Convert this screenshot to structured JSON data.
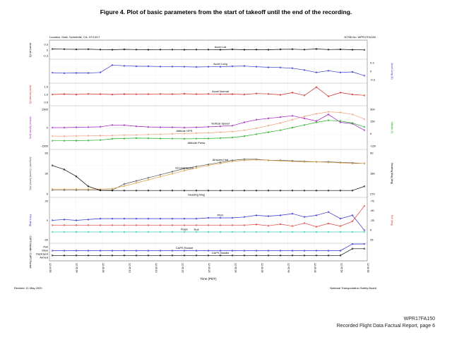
{
  "title": "Figure 4. Plot of basic parameters from the start of takeoff until the end of the recording.",
  "header": {
    "location": "Location, Date: Schellville, CA, 07/13/17",
    "id": "NTSB No. WPR17FA150"
  },
  "revised": "Revised: 11 May 2020",
  "agency": "National Transportation Safety Board",
  "footer": {
    "line1": "WPR17FA150",
    "line2": "Recorded Flight Data Factual Report, page 6"
  },
  "chart_data": {
    "type": "line",
    "xlabel": "Time (PDT)",
    "x_ticks": [
      "12:44:55",
      "12:45:00",
      "12:45:05",
      "12:45:10",
      "12:45:15",
      "12:45:20",
      "12:45:25",
      "12:45:30",
      "12:45:35",
      "12:45:40",
      "12:45:45",
      "12:45:50",
      "12:45:55"
    ],
    "grid": true,
    "panels": [
      {
        "id": "lat",
        "left_axis": "Accel Lat (G)",
        "left_ticks": [
          "0.3",
          "0",
          "-0.3"
        ],
        "right_axis": "",
        "right_ticks": [],
        "series": [
          {
            "name": "Accel Lat",
            "color": "#000000",
            "values": [
              0.06,
              0.05,
              0.04,
              0.05,
              0.03,
              0.02,
              0.04,
              0.03,
              0.02,
              0.03,
              0.03,
              0.02,
              0.03,
              0.03,
              0.02,
              0.04,
              0.02,
              0.03,
              0.02,
              0.04,
              0.05,
              0.03,
              0.06,
              0.03,
              0.04,
              0.02,
              0.01
            ]
          }
        ]
      },
      {
        "id": "long",
        "left_axis": "",
        "left_ticks": [],
        "right_axis": "Accel Long (G)",
        "right_ticks": [
          "0.3",
          "0",
          "-0.3"
        ],
        "series": [
          {
            "name": "Accel Long",
            "color": "#3030cc",
            "values": [
              -0.06,
              -0.08,
              -0.07,
              -0.07,
              -0.05,
              0.25,
              0.22,
              0.2,
              0.2,
              0.19,
              0.19,
              0.18,
              0.17,
              0.18,
              0.18,
              0.2,
              0.21,
              0.18,
              0.16,
              0.15,
              0.12,
              0.05,
              -0.05,
              0.02,
              -0.05,
              -0.03,
              -0.18
            ]
          }
        ]
      },
      {
        "id": "normal",
        "left_axis": "Accel Normal (G)",
        "left_ticks": [
          "1.5",
          "1.0",
          "0.5"
        ],
        "right_axis": "",
        "right_ticks": [],
        "series": [
          {
            "name": "Accel Normal",
            "color": "#cc2a2a",
            "values": [
              1.0,
              1.02,
              1.0,
              1.03,
              1.02,
              1.0,
              1.02,
              1.01,
              1.02,
              1.03,
              1.02,
              1.04,
              1.02,
              1.03,
              1.01,
              1.02,
              1.0,
              1.05,
              1.03,
              0.98,
              1.1,
              0.95,
              1.4,
              0.9,
              1.1,
              1.0,
              0.95
            ]
          }
        ]
      },
      {
        "id": "vs",
        "left_axis": "Vertical Speed (fpm)",
        "left_ticks": [
          "1500",
          "0",
          "-1500"
        ],
        "right_axis": "Altitude (ft)",
        "right_ticks": [
          "300",
          "150",
          "0",
          "-150"
        ],
        "series": [
          {
            "name": "Vertical Speed",
            "color": "#a020c0",
            "values": [
              0,
              0,
              20,
              40,
              60,
              200,
              180,
              100,
              50,
              30,
              20,
              0,
              20,
              60,
              100,
              150,
              400,
              600,
              700,
              800,
              900,
              700,
              500,
              1000,
              400,
              300,
              -200
            ]
          },
          {
            "name": "Altitude GPS",
            "color": "#f0a080",
            "values": [
              -80,
              -80,
              -78,
              -75,
              -72,
              -70,
              -65,
              -60,
              -55,
              -50,
              -45,
              -40,
              -35,
              -30,
              -20,
              -10,
              10,
              40,
              80,
              120,
              170,
              220,
              260,
              290,
              280,
              250,
              180
            ]
          },
          {
            "name": "Altitude Press",
            "color": "#20b020",
            "values": [
              -150,
              -150,
              -148,
              -145,
              -140,
              -120,
              -115,
              -110,
              -112,
              -115,
              -118,
              -120,
              -118,
              -115,
              -110,
              -100,
              -80,
              -50,
              -20,
              10,
              50,
              90,
              130,
              160,
              150,
              120,
              60
            ]
          }
        ]
      },
      {
        "id": "speed",
        "left_axis": "Airspeed / Ground Speed (kts)",
        "left_ticks": [
          "60",
          "30",
          "0"
        ],
        "right_axis": "Heading Mag (deg)",
        "right_ticks": [
          "90",
          "180",
          "270"
        ],
        "series": [
          {
            "name": "Airspeed Ind",
            "color": "#555555",
            "values": [
              0,
              0,
              0,
              0,
              0,
              0,
              12,
              18,
              24,
              30,
              36,
              42,
              46,
              50,
              54,
              58,
              60,
              60,
              58,
              58,
              57,
              56,
              55,
              55,
              54,
              53,
              52
            ]
          },
          {
            "name": "Ground Speed",
            "color": "#e0a040",
            "values": [
              2,
              2,
              2,
              2,
              2,
              3,
              8,
              14,
              20,
              26,
              32,
              38,
              43,
              48,
              52,
              56,
              58,
              59,
              58,
              57,
              56,
              55,
              55,
              54,
              53,
              52,
              52
            ]
          },
          {
            "name": "Heading Mag",
            "color": "#000000",
            "values": [
              150,
              170,
              205,
              255,
              275,
              276,
              276,
              276,
              276,
              276,
              276,
              276,
              276,
              276,
              276,
              276,
              276,
              276,
              276,
              276,
              276,
              276,
              276,
              276,
              276,
              276,
              255
            ]
          }
        ]
      },
      {
        "id": "pitch",
        "left_axis": "Pitch (deg)",
        "left_ticks": [
          "20",
          "0",
          "-20"
        ],
        "right_axis": "Roll (deg)",
        "right_ticks": [
          "-75",
          "-50",
          "-25",
          "0",
          "25"
        ],
        "series": [
          {
            "name": "Pitch",
            "color": "#3030cc",
            "values": [
              0,
              1,
              0,
              1,
              2,
              2,
              2,
              2,
              2,
              2,
              2,
              2,
              2,
              3,
              3,
              3,
              4,
              6,
              5,
              6,
              8,
              4,
              6,
              10,
              2,
              6,
              -12
            ]
          },
          {
            "name": "Flaps",
            "color": "#30d0b0",
            "values": [
              -14,
              -14,
              -14,
              -14,
              -14,
              -14,
              -14,
              -14,
              -14,
              -14,
              -14,
              -14,
              -14,
              -14,
              -14,
              -14,
              -14,
              -14,
              -14,
              -14,
              -14,
              -14,
              -14,
              -14,
              -14,
              -14,
              -14
            ]
          },
          {
            "name": "Roll",
            "color": "#e04040",
            "values": [
              0,
              0,
              0,
              0,
              0,
              0,
              0,
              0,
              0,
              0,
              0,
              0,
              0,
              0,
              0,
              0,
              0,
              -2,
              2,
              -3,
              3,
              -6,
              5,
              -5,
              3,
              -12,
              -60
            ]
          }
        ]
      },
      {
        "id": "caps",
        "left_axis": "CAPS Handle / CAPS Rocket",
        "left_ticks": [
          "Pull",
          "Stow",
          "Deployed",
          "Armed"
        ],
        "right_axis": "",
        "right_ticks": [],
        "series": [
          {
            "name": "CAPS Handle",
            "color": "#000000",
            "values": [
              0,
              0,
              0,
              0,
              0,
              0,
              0,
              0,
              0,
              0,
              0,
              0,
              0,
              0,
              0,
              0,
              0,
              0,
              0,
              0,
              0,
              0,
              0,
              0,
              0,
              1,
              1
            ]
          },
          {
            "name": "CAPS Rocket",
            "color": "#3030cc",
            "values": [
              0,
              0,
              0,
              0,
              0,
              0,
              0,
              0,
              0,
              0,
              0,
              0,
              0,
              0,
              0,
              0,
              0,
              0,
              0,
              0,
              0,
              0,
              0,
              0,
              0,
              1,
              1
            ]
          }
        ]
      }
    ]
  }
}
